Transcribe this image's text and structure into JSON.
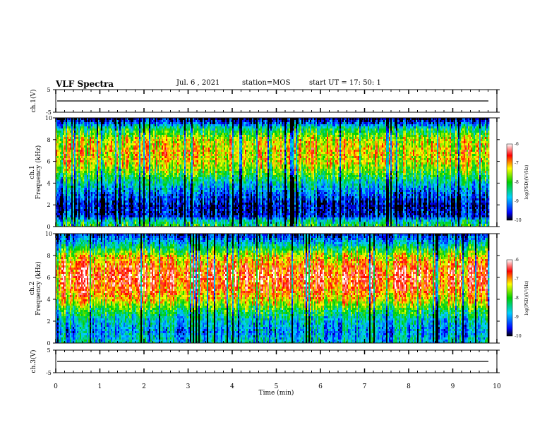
{
  "header": {
    "title": "VLF Spectra",
    "date": "Jul. 6 , 2021",
    "station": "station=MOS",
    "start": "start UT = 17: 50: 1"
  },
  "chart_data": [
    {
      "type": "line",
      "name_label": "ch.1(V)",
      "ylim": [
        -5,
        5
      ],
      "yticks": [
        "5",
        "-5"
      ],
      "series": [
        {
          "values_constant": 0
        }
      ]
    },
    {
      "type": "heatmap",
      "ylabel": "ch.1",
      "ylabel2": "Frequency (kHz)",
      "ylim": [
        0,
        10
      ],
      "yticks": [
        "0",
        "2",
        "4",
        "6",
        "8",
        "10"
      ],
      "colorbar": {
        "label": "log(PSD)(V²/Hz)",
        "range": [
          -10,
          -6
        ],
        "ticks": [
          "-6",
          "-7",
          "-8",
          "-9",
          "-10"
        ]
      },
      "band_profile": [
        {
          "f": 0.0,
          "p": -8.0
        },
        {
          "f": 0.5,
          "p": -8.5
        },
        {
          "f": 1.0,
          "p": -9.6
        },
        {
          "f": 2.0,
          "p": -9.7
        },
        {
          "f": 3.0,
          "p": -9.2
        },
        {
          "f": 4.0,
          "p": -8.6
        },
        {
          "f": 5.0,
          "p": -7.8
        },
        {
          "f": 6.0,
          "p": -7.3
        },
        {
          "f": 7.0,
          "p": -7.2
        },
        {
          "f": 8.0,
          "p": -7.4
        },
        {
          "f": 9.0,
          "p": -8.3
        },
        {
          "f": 9.5,
          "p": -9.3
        },
        {
          "f": 10.0,
          "p": -10.0
        }
      ]
    },
    {
      "type": "heatmap",
      "ylabel": "ch.2",
      "ylabel2": "Frequency (kHz)",
      "ylim": [
        0,
        10
      ],
      "yticks": [
        "0",
        "2",
        "4",
        "6",
        "8",
        "10"
      ],
      "colorbar": {
        "label": "log(PSD)(V²/Hz)",
        "range": [
          -10,
          -6
        ],
        "ticks": [
          "-6",
          "-7",
          "-8",
          "-9",
          "-10"
        ]
      },
      "band_profile": [
        {
          "f": 0.0,
          "p": -8.6
        },
        {
          "f": 1.0,
          "p": -9.0
        },
        {
          "f": 2.0,
          "p": -8.7
        },
        {
          "f": 3.0,
          "p": -8.1
        },
        {
          "f": 4.0,
          "p": -7.2
        },
        {
          "f": 5.0,
          "p": -6.8
        },
        {
          "f": 6.0,
          "p": -6.6
        },
        {
          "f": 7.0,
          "p": -6.8
        },
        {
          "f": 8.0,
          "p": -7.4
        },
        {
          "f": 9.0,
          "p": -8.6
        },
        {
          "f": 10.0,
          "p": -9.6
        }
      ]
    },
    {
      "type": "line",
      "name_label": "ch.3(V)",
      "ylim": [
        -5,
        5
      ],
      "yticks": [
        "5",
        "-5"
      ],
      "series": [
        {
          "values_constant": 0
        }
      ]
    }
  ],
  "xaxis": {
    "label": "Time (min)",
    "xlim": [
      0,
      10
    ],
    "ticks": [
      "0",
      "1",
      "2",
      "3",
      "4",
      "5",
      "6",
      "7",
      "8",
      "9",
      "10"
    ],
    "data_end": 9.83
  }
}
